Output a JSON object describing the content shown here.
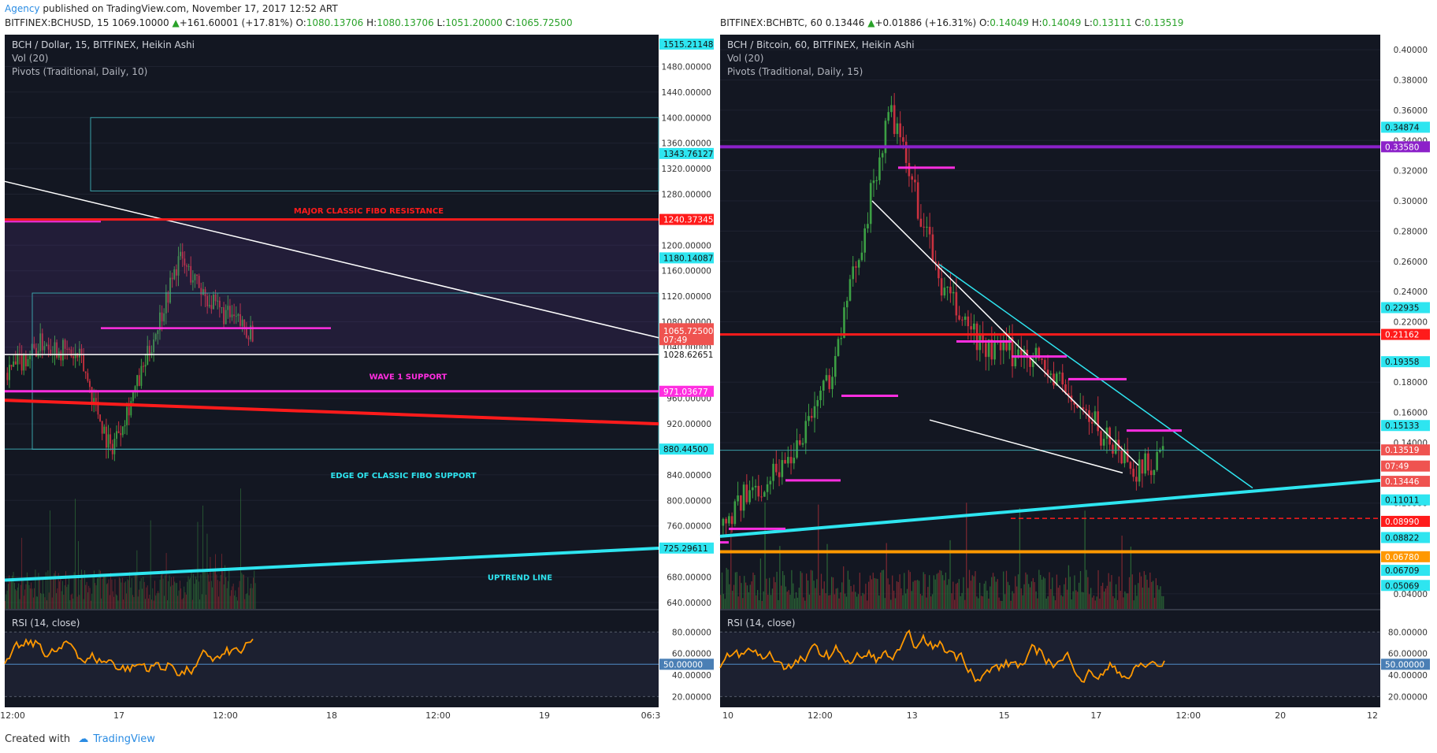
{
  "publisher": {
    "name": "Agency",
    "text": "published on TradingView.com, November 17, 2017 12:52 ART"
  },
  "footer": {
    "created_with": "Created with",
    "brand": "TradingView"
  },
  "colors": {
    "bg": "#131722",
    "grid": "#2a2e39",
    "up": "#26a69a",
    "candle_up": "#3c9f44",
    "candle_down": "#c8313f",
    "cyan": "#2ee5f0",
    "red": "#ff1b1b",
    "magenta": "#ff2ee0",
    "orange": "#ff9800",
    "white": "#ffffff",
    "purple": "#8c21c9"
  },
  "charts": [
    {
      "id": "left",
      "ticker_line": {
        "symbol": "BITFINEX:BCHUSD, 15",
        "last": "1069.10000",
        "change": "+161.60001 (+17.81%)",
        "o": "1080.13706",
        "h": "1080.13706",
        "l": "1051.20000",
        "c": "1065.72500"
      },
      "title": "BCH / Dollar, 15, BITFINEX, Heikin Ashi",
      "indicators": [
        "Vol (20)",
        "Pivots (Traditional, Daily, 10)"
      ],
      "price_range": [
        630,
        1530
      ],
      "y_ticks": [
        "1480.00000",
        "1440.00000",
        "1400.00000",
        "1360.00000",
        "1320.00000",
        "1280.00000",
        "1200.00000",
        "1160.00000",
        "1120.00000",
        "1080.00000",
        "1040.00000",
        "960.00000",
        "920.00000",
        "840.00000",
        "800.00000",
        "760.00000",
        "680.00000",
        "640.00000"
      ],
      "y_tick_values": [
        1480,
        1440,
        1400,
        1360,
        1320,
        1280,
        1200,
        1160,
        1120,
        1080,
        1040,
        960,
        920,
        840,
        800,
        760,
        680,
        640
      ],
      "badges": [
        {
          "label": "1515.21148",
          "value": 1515.21148,
          "color": "#2ee5f0"
        },
        {
          "label": "1343.76127",
          "value": 1343.76127,
          "color": "#2ee5f0"
        },
        {
          "label": "1240.37345",
          "value": 1240.37345,
          "color": "#ff1b1b"
        },
        {
          "label": "1180.14087",
          "value": 1180.14087,
          "color": "#2ee5f0"
        },
        {
          "label": "1069.10000",
          "value": 1069.1,
          "color": "#ef5350"
        },
        {
          "label": "1065.72500",
          "value": 1065.725,
          "color": "#ef5350"
        },
        {
          "label": "07:49",
          "value": 1052,
          "color": "#ef5350"
        },
        {
          "label": "1028.62651",
          "value": 1028.62651,
          "color": "#ffffff"
        },
        {
          "label": "971.03677",
          "value": 971.03677,
          "color": "#ff2ee0"
        },
        {
          "label": "880.44500",
          "value": 880.445,
          "color": "#2ee5f0"
        },
        {
          "label": "725.29611",
          "value": 725.29611,
          "color": "#2ee5f0"
        }
      ],
      "annotations": [
        "MAJOR CLASSIC FIBO RESISTANCE",
        "WAVE 1 SUPPORT",
        "EDGE OF CLASSIC FIBO SUPPORT",
        "UPTREND LINE"
      ],
      "x_ticks": [
        "12:00",
        "17",
        "12:00",
        "18",
        "12:00",
        "19",
        "06:3"
      ],
      "rsi": {
        "label": "RSI (14, close)",
        "ticks": [
          "80.00000",
          "60.00000",
          "40.00000",
          "20.00000"
        ],
        "tick_values": [
          80,
          60,
          40,
          20
        ],
        "badge": "50.00000",
        "badge_value": 50
      }
    },
    {
      "id": "right",
      "ticker_line": {
        "symbol": "BITFINEX:BCHBTC, 60",
        "last": "0.13446",
        "change": "+0.01886 (+16.31%)",
        "o": "0.14049",
        "h": "0.14049",
        "l": "0.13111",
        "c": "0.13519"
      },
      "title": "BCH / Bitcoin, 60, BITFINEX, Heikin Ashi",
      "indicators": [
        "Vol (20)",
        "Pivots (Traditional, Daily, 15)"
      ],
      "price_range": [
        0.03,
        0.41
      ],
      "y_ticks": [
        "0.40000",
        "0.38000",
        "0.36000",
        "0.34000",
        "0.32000",
        "0.30000",
        "0.28000",
        "0.26000",
        "0.24000",
        "0.22000",
        "0.18000",
        "0.16000",
        "0.14000",
        "0.10000",
        "0.04000"
      ],
      "y_tick_values": [
        0.4,
        0.38,
        0.36,
        0.34,
        0.32,
        0.3,
        0.28,
        0.26,
        0.24,
        0.22,
        0.18,
        0.16,
        0.14,
        0.1,
        0.04
      ],
      "badges": [
        {
          "label": "0.34874",
          "value": 0.34874,
          "color": "#2ee5f0"
        },
        {
          "label": "0.33580",
          "value": 0.3358,
          "color": "#8c21c9"
        },
        {
          "label": "0.22935",
          "value": 0.22935,
          "color": "#2ee5f0"
        },
        {
          "label": "0.21162",
          "value": 0.21162,
          "color": "#ff1b1b"
        },
        {
          "label": "0.19358",
          "value": 0.19358,
          "color": "#2ee5f0"
        },
        {
          "label": "0.15133",
          "value": 0.15133,
          "color": "#2ee5f0"
        },
        {
          "label": "0.13519",
          "value": 0.13519,
          "color": "#ef5350"
        },
        {
          "label": "07:49",
          "value": 0.1245,
          "color": "#ef5350"
        },
        {
          "label": "0.13446",
          "value": 0.1144,
          "color": "#ef5350"
        },
        {
          "label": "0.11011",
          "value": 0.10211,
          "color": "#2ee5f0"
        },
        {
          "label": "0.08990",
          "value": 0.0879,
          "color": "#ff1b1b"
        },
        {
          "label": "0.08822",
          "value": 0.0772,
          "color": "#2ee5f0"
        },
        {
          "label": "0.06780",
          "value": 0.0645,
          "color": "#ff9800"
        },
        {
          "label": "0.06709",
          "value": 0.0555,
          "color": "#2ee5f0"
        },
        {
          "label": "0.05069",
          "value": 0.0455,
          "color": "#2ee5f0"
        }
      ],
      "annotations": [],
      "x_ticks": [
        "10",
        "12:00",
        "13",
        "15",
        "17",
        "12:00",
        "20",
        "12"
      ],
      "rsi": {
        "label": "RSI (14, close)",
        "ticks": [
          "80.00000",
          "60.00000",
          "40.00000",
          "20.00000"
        ],
        "tick_values": [
          80,
          60,
          40,
          20
        ],
        "badge": "50.00000",
        "badge_value": 50
      }
    }
  ]
}
